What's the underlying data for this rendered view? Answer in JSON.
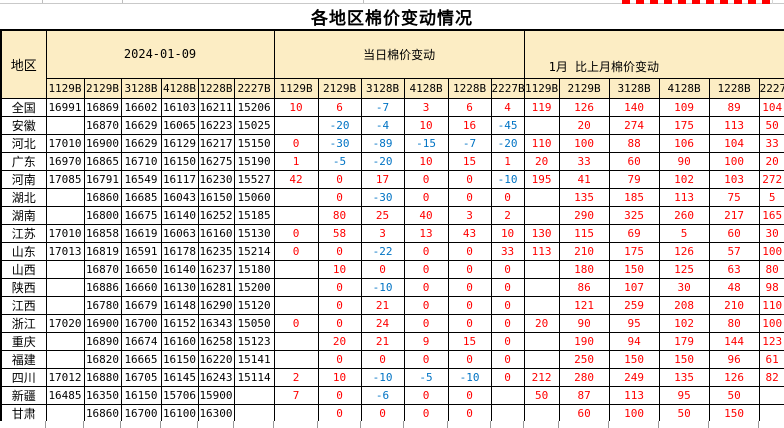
{
  "title": "各地区棉价变动情况",
  "header": {
    "region_col": "地区",
    "group_date": "2024-01-09",
    "group_daily": "当日棉价变动",
    "group_monthly": "1月 比上月棉价变动",
    "grade_cols": [
      "1129B",
      "2129B",
      "3128B",
      "4128B",
      "1228B",
      "2227B"
    ]
  },
  "colors": {
    "positive": "#ff0000",
    "negative": "#0073c4",
    "header_bg": "#fcedc4",
    "border": "#000000",
    "title_color": "#000000"
  },
  "rows": [
    {
      "region": "全国",
      "prices": [
        "16991",
        "16869",
        "16602",
        "16103",
        "16211",
        "15206"
      ],
      "daily": [
        "10",
        "6",
        "-7",
        "3",
        "6",
        "4"
      ],
      "monthly": [
        "119",
        "126",
        "140",
        "109",
        "89",
        "104"
      ]
    },
    {
      "region": "安徽",
      "prices": [
        "",
        "16870",
        "16629",
        "16065",
        "16223",
        "15025"
      ],
      "daily": [
        "",
        "-20",
        "-4",
        "10",
        "16",
        "-45"
      ],
      "monthly": [
        "",
        "20",
        "274",
        "175",
        "113",
        "50"
      ]
    },
    {
      "region": "河北",
      "prices": [
        "17010",
        "16900",
        "16629",
        "16129",
        "16217",
        "15150"
      ],
      "daily": [
        "0",
        "-30",
        "-89",
        "-15",
        "-7",
        "-20"
      ],
      "monthly": [
        "110",
        "100",
        "88",
        "106",
        "104",
        "33"
      ]
    },
    {
      "region": "广东",
      "prices": [
        "16970",
        "16865",
        "16710",
        "16150",
        "16275",
        "15190"
      ],
      "daily": [
        "1",
        "-5",
        "-20",
        "10",
        "15",
        "1"
      ],
      "monthly": [
        "20",
        "33",
        "60",
        "90",
        "100",
        "20"
      ]
    },
    {
      "region": "河南",
      "prices": [
        "17085",
        "16791",
        "16549",
        "16117",
        "16230",
        "15527"
      ],
      "daily": [
        "42",
        "0",
        "17",
        "0",
        "0",
        "-10"
      ],
      "monthly": [
        "195",
        "41",
        "79",
        "102",
        "103",
        "272"
      ]
    },
    {
      "region": "湖北",
      "prices": [
        "",
        "16860",
        "16685",
        "16043",
        "16150",
        "15060"
      ],
      "daily": [
        "",
        "0",
        "-30",
        "0",
        "0",
        "0"
      ],
      "monthly": [
        "",
        "135",
        "185",
        "113",
        "75",
        "5"
      ]
    },
    {
      "region": "湖南",
      "prices": [
        "",
        "16800",
        "16675",
        "16140",
        "16252",
        "15185"
      ],
      "daily": [
        "",
        "80",
        "25",
        "40",
        "3",
        "2"
      ],
      "monthly": [
        "",
        "290",
        "325",
        "260",
        "217",
        "165"
      ]
    },
    {
      "region": "江苏",
      "prices": [
        "17010",
        "16858",
        "16619",
        "16063",
        "16160",
        "15130"
      ],
      "daily": [
        "0",
        "58",
        "3",
        "13",
        "43",
        "10"
      ],
      "monthly": [
        "130",
        "115",
        "69",
        "5",
        "60",
        "30"
      ]
    },
    {
      "region": "山东",
      "prices": [
        "17013",
        "16819",
        "16591",
        "16178",
        "16235",
        "15214"
      ],
      "daily": [
        "0",
        "0",
        "-22",
        "0",
        "0",
        "33"
      ],
      "monthly": [
        "113",
        "210",
        "175",
        "126",
        "57",
        "100"
      ]
    },
    {
      "region": "山西",
      "prices": [
        "",
        "16870",
        "16650",
        "16140",
        "16237",
        "15180"
      ],
      "daily": [
        "",
        "10",
        "0",
        "0",
        "0",
        "0"
      ],
      "monthly": [
        "",
        "180",
        "150",
        "125",
        "63",
        "80"
      ]
    },
    {
      "region": "陕西",
      "prices": [
        "",
        "16886",
        "16660",
        "16130",
        "16281",
        "15200"
      ],
      "daily": [
        "",
        "0",
        "-10",
        "0",
        "0",
        "0"
      ],
      "monthly": [
        "",
        "86",
        "107",
        "30",
        "48",
        "98"
      ]
    },
    {
      "region": "江西",
      "prices": [
        "",
        "16780",
        "16679",
        "16148",
        "16290",
        "15120"
      ],
      "daily": [
        "",
        "0",
        "21",
        "0",
        "0",
        "0"
      ],
      "monthly": [
        "",
        "121",
        "259",
        "208",
        "210",
        "110"
      ]
    },
    {
      "region": "浙江",
      "prices": [
        "17020",
        "16900",
        "16700",
        "16152",
        "16343",
        "15050"
      ],
      "daily": [
        "0",
        "0",
        "24",
        "0",
        "0",
        "0"
      ],
      "monthly": [
        "20",
        "90",
        "95",
        "102",
        "80",
        "100"
      ]
    },
    {
      "region": "重庆",
      "prices": [
        "",
        "16890",
        "16674",
        "16160",
        "16258",
        "15123"
      ],
      "daily": [
        "",
        "20",
        "21",
        "9",
        "15",
        "0"
      ],
      "monthly": [
        "",
        "190",
        "94",
        "179",
        "144",
        "123"
      ]
    },
    {
      "region": "福建",
      "prices": [
        "",
        "16820",
        "16665",
        "16150",
        "16220",
        "15141"
      ],
      "daily": [
        "",
        "0",
        "0",
        "0",
        "0",
        "0"
      ],
      "monthly": [
        "",
        "250",
        "150",
        "150",
        "96",
        "61"
      ]
    },
    {
      "region": "四川",
      "prices": [
        "17012",
        "16880",
        "16705",
        "16145",
        "16243",
        "15114"
      ],
      "daily": [
        "2",
        "10",
        "-10",
        "-5",
        "-10",
        "0"
      ],
      "monthly": [
        "212",
        "280",
        "249",
        "135",
        "126",
        "82"
      ]
    },
    {
      "region": "新疆",
      "prices": [
        "16485",
        "16350",
        "16150",
        "15706",
        "15900",
        ""
      ],
      "daily": [
        "7",
        "0",
        "-6",
        "0",
        "0",
        ""
      ],
      "monthly": [
        "50",
        "87",
        "113",
        "95",
        "50",
        ""
      ]
    },
    {
      "region": "甘肃",
      "prices": [
        "",
        "16860",
        "16700",
        "16100",
        "16300",
        ""
      ],
      "daily": [
        "",
        "0",
        "0",
        "0",
        "0",
        ""
      ],
      "monthly": [
        "",
        "60",
        "100",
        "50",
        "150",
        ""
      ]
    }
  ]
}
